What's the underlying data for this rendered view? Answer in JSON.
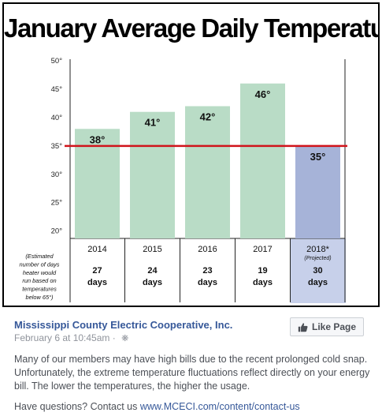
{
  "chart_data": {
    "type": "bar",
    "title": "January Average Daily Temperature",
    "categories": [
      "2014",
      "2015",
      "2016",
      "2017",
      "2018*"
    ],
    "category_sublabels": [
      "",
      "",
      "",
      "",
      "(Projected)"
    ],
    "values": [
      38,
      41,
      42,
      46,
      35
    ],
    "data_labels": [
      "38°",
      "41°",
      "42°",
      "46°",
      "35°"
    ],
    "bar_colors": [
      "#b9dcc6",
      "#b9dcc6",
      "#b9dcc6",
      "#b9dcc6",
      "#a6b3d8"
    ],
    "ylim": [
      18.7,
      50
    ],
    "yticks": [
      {
        "value": 20,
        "label": "20°"
      },
      {
        "value": 25,
        "label": "25°"
      },
      {
        "value": 30,
        "label": "30°"
      },
      {
        "value": 35,
        "label": "35°"
      },
      {
        "value": 40,
        "label": "40°"
      },
      {
        "value": 45,
        "label": "45°"
      },
      {
        "value": 50,
        "label": "50°"
      }
    ],
    "reference_line": {
      "value": 35,
      "color": "#d0141b"
    },
    "table_note": [
      "(Estimated",
      "number of days",
      "heater would",
      "run based on",
      "temperatures",
      "below 65°)"
    ],
    "days_values": [
      "27",
      "24",
      "23",
      "19",
      "30"
    ],
    "days_unit": "days",
    "days_column_color": "#c7d0ea"
  },
  "post": {
    "page_name": "Mississippi County Electric Cooperative, Inc.",
    "timestamp": "February 6 at 10:45am",
    "meta_separator": "·",
    "privacy_icon": "gear-icon",
    "like_button_label": "Like Page",
    "like_button_icon": "thumbs-up-icon",
    "body_paragraph": "Many of our members may have high bills due to the recent prolonged cold snap. Unfortunately, the extreme temperature fluctuations reflect directly on your energy bill. The lower the temperatures, the higher the usage.",
    "contact_prefix": "Have questions? Contact us ",
    "contact_link": "www.MCECI.com/content/contact-us"
  }
}
